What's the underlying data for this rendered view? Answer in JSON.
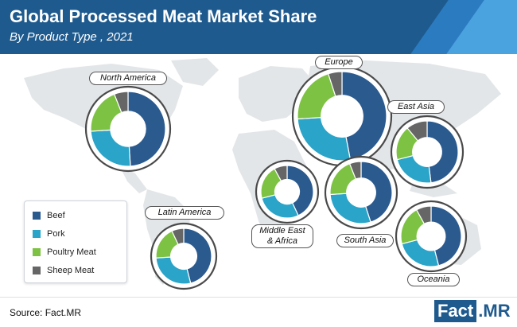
{
  "header": {
    "title": "Global Processed Meat Market Share",
    "subtitle": "By Product Type , 2021"
  },
  "legend": {
    "items": [
      {
        "label": "Beef",
        "color": "#2b5a8f"
      },
      {
        "label": "Pork",
        "color": "#2aa4c8"
      },
      {
        "label": "Poultry Meat",
        "color": "#7dc242"
      },
      {
        "label": "Sheep Meat",
        "color": "#666666"
      }
    ]
  },
  "chart_data": {
    "type": "pie",
    "title": "Global Processed Meat Market Share",
    "subtitle": "By Product Type , 2021",
    "series_names": [
      "Beef",
      "Pork",
      "Poultry Meat",
      "Sheep Meat"
    ],
    "colors": [
      "#2b5a8f",
      "#2aa4c8",
      "#7dc242",
      "#666666"
    ],
    "regions": [
      {
        "name": "North America",
        "values": [
          49,
          25,
          20,
          6
        ]
      },
      {
        "name": "Europe",
        "values": [
          47,
          27,
          21,
          5
        ]
      },
      {
        "name": "East Asia",
        "values": [
          48,
          23,
          18,
          11
        ]
      },
      {
        "name": "Latin America",
        "values": [
          46,
          28,
          19,
          7
        ]
      },
      {
        "name": "Middle East\n& Africa",
        "values": [
          43,
          28,
          21,
          8
        ]
      },
      {
        "name": "South Asia",
        "values": [
          45,
          29,
          20,
          6
        ]
      },
      {
        "name": "Oceania",
        "values": [
          46,
          25,
          21,
          8
        ]
      }
    ]
  },
  "source": "Source: Fact.MR",
  "logo": {
    "part1": "Fact",
    "part2": ".MR"
  }
}
